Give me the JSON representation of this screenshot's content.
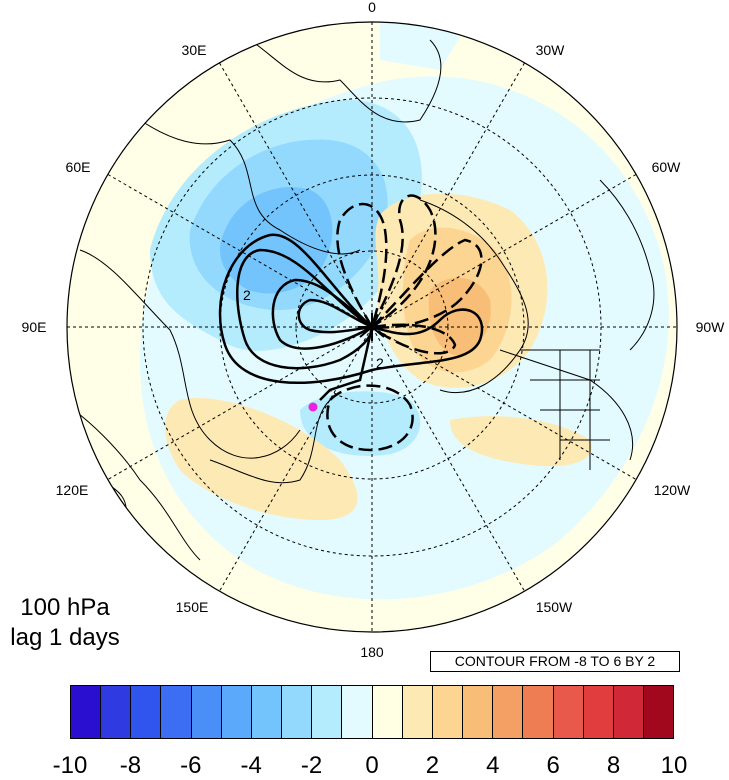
{
  "map": {
    "title_lines": [
      "100 hPa",
      "lag 1 days"
    ],
    "lon_labels": [
      "0",
      "30W",
      "60W",
      "90W",
      "120W",
      "150W",
      "180",
      "150E",
      "120E",
      "90E",
      "60E",
      "30E"
    ],
    "contour_note": "CONTOUR FROM -8 TO 6 BY 2",
    "contour_value_labels": [
      "2",
      "2"
    ],
    "marker_color": "#ee22dd"
  },
  "colorbar": {
    "colors": [
      "#2a0fd0",
      "#2f3ae0",
      "#2f55ee",
      "#3b6ef3",
      "#4a8ff7",
      "#5aa9fa",
      "#73c4fc",
      "#93d9fd",
      "#b4ecfe",
      "#e3fbff",
      "#ffffe3",
      "#fde9b4",
      "#fbd591",
      "#f8bd77",
      "#f49f63",
      "#ef7d54",
      "#e8584b",
      "#e13d3e",
      "#d02836",
      "#a1081e"
    ],
    "labels": [
      "-10",
      "-8",
      "-6",
      "-4",
      "-2",
      "0",
      "2",
      "4",
      "6",
      "8",
      "10"
    ]
  }
}
